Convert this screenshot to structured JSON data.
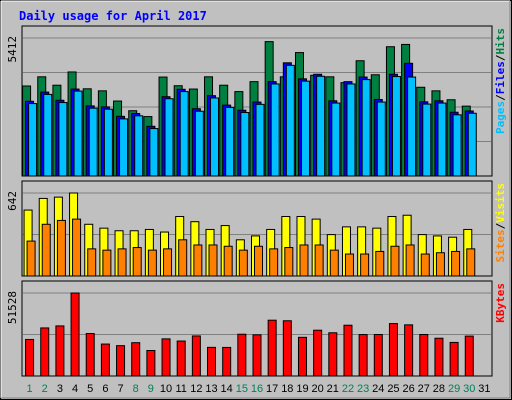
{
  "chart_data": {
    "type": "bar",
    "title": "Daily usage for April 2017",
    "categories": [
      "1",
      "2",
      "3",
      "4",
      "5",
      "6",
      "7",
      "8",
      "9",
      "10",
      "11",
      "12",
      "13",
      "14",
      "15",
      "16",
      "17",
      "18",
      "19",
      "20",
      "21",
      "22",
      "23",
      "24",
      "25",
      "26",
      "27",
      "28",
      "29",
      "30",
      "31"
    ],
    "weekend_days": [
      "1",
      "2",
      "8",
      "9",
      "15",
      "16",
      "22",
      "23",
      "29",
      "30"
    ],
    "panels": [
      {
        "id": "hits-files-pages",
        "ymax_label": "5412",
        "ylim": [
          0,
          5412
        ],
        "legend": [
          {
            "label": "Pages",
            "color": "#00c0ff"
          },
          {
            "label": "/",
            "color": "#000000"
          },
          {
            "label": "Files",
            "color": "#0000ff"
          },
          {
            "label": "/",
            "color": "#000000"
          },
          {
            "label": "Hits",
            "color": "#008040"
          }
        ],
        "series": [
          {
            "name": "Hits",
            "color": "#008040",
            "values": [
              3530,
              3890,
              3560,
              4080,
              3420,
              3340,
              2940,
              2560,
              2330,
              3880,
              3540,
              3410,
              3890,
              3560,
              3310,
              3700,
              5270,
              3890,
              4840,
              3950,
              3890,
              3660,
              4520,
              3970,
              5070,
              5160,
              3480,
              3340,
              2990,
              2740,
              0
            ]
          },
          {
            "name": "Files",
            "color": "#0000ff",
            "values": [
              2930,
              3290,
              2970,
              3410,
              2750,
              2710,
              2340,
              2450,
              1950,
              3110,
              3400,
              2640,
              3150,
              2780,
              2580,
              2900,
              3700,
              4440,
              3810,
              3990,
              2950,
              3700,
              3880,
              3000,
              3990,
              4420,
              2910,
              2950,
              2500,
              2550,
              0
            ]
          },
          {
            "name": "Pages",
            "color": "#00c0ff",
            "values": [
              2840,
              3200,
              2880,
              3330,
              2660,
              2620,
              2240,
              2360,
              1860,
              3030,
              3310,
              2540,
              3060,
              2690,
              2490,
              2810,
              3610,
              4340,
              3720,
              3910,
              2860,
              3610,
              3780,
              2900,
              3900,
              3880,
              2820,
              2860,
              2400,
              2460,
              0
            ]
          }
        ]
      },
      {
        "id": "visits-sites",
        "ymax_label": "642",
        "ylim": [
          0,
          642
        ],
        "legend": [
          {
            "label": "Sites",
            "color": "#ff8000"
          },
          {
            "label": "/",
            "color": "#000000"
          },
          {
            "label": "Visits",
            "color": "#ffff00"
          }
        ],
        "series": [
          {
            "name": "Visits",
            "color": "#ffff00",
            "values": [
              510,
              600,
              610,
              642,
              400,
              370,
              350,
              350,
              360,
              340,
              460,
              420,
              360,
              390,
              280,
              310,
              360,
              460,
              460,
              440,
              320,
              380,
              380,
              370,
              460,
              470,
              320,
              310,
              300,
              360,
              0
            ]
          },
          {
            "name": "Sites",
            "color": "#ff8000",
            "values": [
              270,
              400,
              430,
              440,
              210,
              200,
              210,
              220,
              200,
              210,
              280,
              240,
              240,
              230,
              200,
              230,
              210,
              220,
              240,
              240,
              200,
              170,
              170,
              190,
              230,
              240,
              170,
              180,
              190,
              210,
              0
            ]
          }
        ]
      },
      {
        "id": "kbytes",
        "ymax_label": "51528",
        "ylim": [
          0,
          51528
        ],
        "legend": [
          {
            "label": "KBytes",
            "color": "#ff0000"
          }
        ],
        "series": [
          {
            "name": "KBytes",
            "color": "#ff0000",
            "values": [
              22690,
              29840,
              31090,
              51528,
              26360,
              19830,
              18830,
              20680,
              15830,
              23060,
              21710,
              24870,
              17780,
              17730,
              25930,
              25560,
              34640,
              34300,
              24010,
              28420,
              26830,
              31520,
              25720,
              25750,
              32530,
              31760,
              25760,
              23450,
              20850,
              24770,
              0
            ]
          }
        ]
      }
    ]
  }
}
